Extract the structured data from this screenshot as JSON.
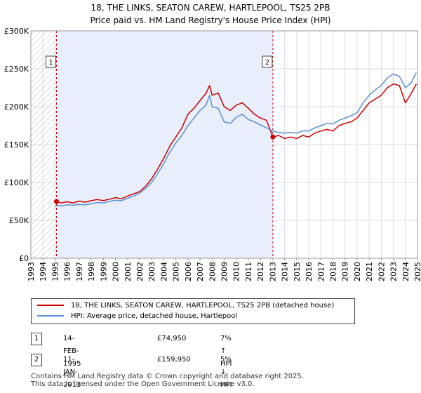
{
  "chart_data": {
    "type": "line",
    "title": "18, THE LINKS, SEATON CAREW, HARTLEPOOL, TS25 2PB",
    "subtitle": "Price paid vs. HM Land Registry's House Price Index (HPI)",
    "xlim": [
      1993,
      2025
    ],
    "ylim": [
      0,
      300000
    ],
    "x_ticks": [
      "1993",
      "1994",
      "1995",
      "1996",
      "1997",
      "1998",
      "1999",
      "2000",
      "2001",
      "2002",
      "2003",
      "2004",
      "2005",
      "2006",
      "2007",
      "2008",
      "2009",
      "2010",
      "2011",
      "2012",
      "2013",
      "2014",
      "2015",
      "2016",
      "2017",
      "2018",
      "2019",
      "2020",
      "2021",
      "2022",
      "2023",
      "2024",
      "2025"
    ],
    "y_ticks": [
      {
        "value": 0,
        "label": "£0"
      },
      {
        "value": 50000,
        "label": "£50K"
      },
      {
        "value": 100000,
        "label": "£100K"
      },
      {
        "value": 150000,
        "label": "£150K"
      },
      {
        "value": 200000,
        "label": "£200K"
      },
      {
        "value": 250000,
        "label": "£250K"
      },
      {
        "value": 300000,
        "label": "£300K"
      }
    ],
    "series": [
      {
        "name": "18, THE LINKS, SEATON CAREW, HARTLEPOOL, TS25 2PB (detached house)",
        "color": "#cc0000",
        "points": [
          [
            1995.12,
            74950
          ],
          [
            1995.5,
            73000
          ],
          [
            1996,
            74500
          ],
          [
            1996.5,
            73000
          ],
          [
            1997,
            75500
          ],
          [
            1997.5,
            74000
          ],
          [
            1998,
            76000
          ],
          [
            1998.5,
            77500
          ],
          [
            1999,
            76000
          ],
          [
            1999.5,
            78000
          ],
          [
            2000,
            80000
          ],
          [
            2000.5,
            78500
          ],
          [
            2001,
            82000
          ],
          [
            2001.5,
            85000
          ],
          [
            2002,
            88000
          ],
          [
            2002.5,
            95000
          ],
          [
            2003,
            105000
          ],
          [
            2003.5,
            118000
          ],
          [
            2004,
            132000
          ],
          [
            2004.5,
            148000
          ],
          [
            2005,
            160000
          ],
          [
            2005.5,
            172000
          ],
          [
            2006,
            190000
          ],
          [
            2006.5,
            198000
          ],
          [
            2007,
            208000
          ],
          [
            2007.5,
            218000
          ],
          [
            2007.8,
            228000
          ],
          [
            2008,
            215000
          ],
          [
            2008.5,
            218000
          ],
          [
            2009,
            200000
          ],
          [
            2009.5,
            195000
          ],
          [
            2010,
            202000
          ],
          [
            2010.5,
            205000
          ],
          [
            2011,
            198000
          ],
          [
            2011.5,
            190000
          ],
          [
            2012,
            185000
          ],
          [
            2012.5,
            182000
          ],
          [
            2013.03,
            159950
          ],
          [
            2013.5,
            162000
          ],
          [
            2014,
            158000
          ],
          [
            2014.5,
            160000
          ],
          [
            2015,
            158000
          ],
          [
            2015.5,
            162000
          ],
          [
            2016,
            160000
          ],
          [
            2016.5,
            165000
          ],
          [
            2017,
            168000
          ],
          [
            2017.5,
            170000
          ],
          [
            2018,
            168000
          ],
          [
            2018.5,
            175000
          ],
          [
            2019,
            178000
          ],
          [
            2019.5,
            180000
          ],
          [
            2020,
            185000
          ],
          [
            2020.5,
            195000
          ],
          [
            2021,
            205000
          ],
          [
            2021.5,
            210000
          ],
          [
            2022,
            215000
          ],
          [
            2022.5,
            225000
          ],
          [
            2023,
            230000
          ],
          [
            2023.5,
            228000
          ],
          [
            2024,
            205000
          ],
          [
            2024.5,
            218000
          ],
          [
            2024.9,
            230000
          ]
        ]
      },
      {
        "name": "HPI: Average price, detached house, Hartlepool",
        "color": "#5b8fd4",
        "points": [
          [
            1995,
            70000
          ],
          [
            1995.5,
            69000
          ],
          [
            1996,
            70500
          ],
          [
            1996.5,
            70000
          ],
          [
            1997,
            71000
          ],
          [
            1997.5,
            70500
          ],
          [
            1998,
            72000
          ],
          [
            1998.5,
            73500
          ],
          [
            1999,
            73000
          ],
          [
            1999.5,
            75000
          ],
          [
            2000,
            76500
          ],
          [
            2000.5,
            76000
          ],
          [
            2001,
            79000
          ],
          [
            2001.5,
            82000
          ],
          [
            2002,
            86000
          ],
          [
            2002.5,
            92000
          ],
          [
            2003,
            100000
          ],
          [
            2003.5,
            112000
          ],
          [
            2004,
            125000
          ],
          [
            2004.5,
            140000
          ],
          [
            2005,
            152000
          ],
          [
            2005.5,
            162000
          ],
          [
            2006,
            175000
          ],
          [
            2006.5,
            185000
          ],
          [
            2007,
            195000
          ],
          [
            2007.5,
            202000
          ],
          [
            2007.8,
            215000
          ],
          [
            2008,
            200000
          ],
          [
            2008.5,
            198000
          ],
          [
            2009,
            180000
          ],
          [
            2009.5,
            178000
          ],
          [
            2010,
            186000
          ],
          [
            2010.5,
            190000
          ],
          [
            2011,
            183000
          ],
          [
            2011.5,
            180000
          ],
          [
            2012,
            176000
          ],
          [
            2012.5,
            172000
          ],
          [
            2013,
            168000
          ],
          [
            2013.5,
            166000
          ],
          [
            2014,
            165000
          ],
          [
            2014.5,
            166000
          ],
          [
            2015,
            165000
          ],
          [
            2015.5,
            168000
          ],
          [
            2016,
            168000
          ],
          [
            2016.5,
            172000
          ],
          [
            2017,
            175000
          ],
          [
            2017.5,
            178000
          ],
          [
            2018,
            177000
          ],
          [
            2018.5,
            182000
          ],
          [
            2019,
            185000
          ],
          [
            2019.5,
            188000
          ],
          [
            2020,
            192000
          ],
          [
            2020.5,
            205000
          ],
          [
            2021,
            215000
          ],
          [
            2021.5,
            222000
          ],
          [
            2022,
            228000
          ],
          [
            2022.5,
            238000
          ],
          [
            2023,
            243000
          ],
          [
            2023.5,
            240000
          ],
          [
            2024,
            225000
          ],
          [
            2024.5,
            232000
          ],
          [
            2024.9,
            245000
          ]
        ]
      }
    ],
    "sales": [
      {
        "label": "1",
        "x": 1995.12,
        "date": "14-FEB-1995",
        "price": 74950,
        "price_text": "£74,950",
        "hpi_text": "7% ↑ HPI"
      },
      {
        "label": "2",
        "x": 2013.03,
        "date": "11-JAN-2013",
        "price": 159950,
        "price_text": "£159,950",
        "hpi_text": "5% ↓ HPI"
      }
    ],
    "shaded_range": [
      1995.12,
      2013.03
    ],
    "hatched_range": [
      1993,
      1995.12
    ]
  },
  "legend": {
    "property_label": "18, THE LINKS, SEATON CAREW, HARTLEPOOL, TS25 2PB (detached house)",
    "hpi_label": "HPI: Average price, detached house, Hartlepool"
  },
  "footer": {
    "line1": "Contains HM Land Registry data © Crown copyright and database right 2025.",
    "line2": "This data is licensed under the Open Government Licence v3.0."
  }
}
